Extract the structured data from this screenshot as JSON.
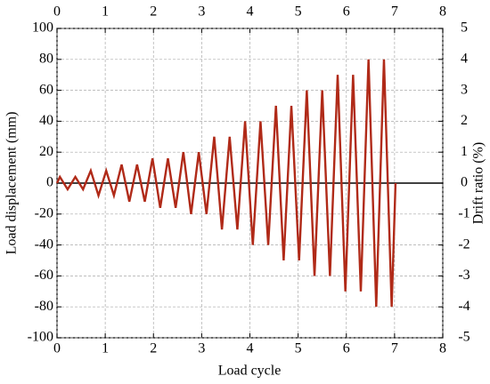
{
  "chart_data": {
    "type": "line",
    "xlabel": "Load cycle",
    "ylabel": "Load displacement (mm)",
    "y2label": "Drift ratio (%)",
    "x": [
      0,
      0.06,
      0.22,
      0.38,
      0.54,
      0.7,
      0.86,
      1.02,
      1.18,
      1.34,
      1.5,
      1.66,
      1.82,
      1.98,
      2.14,
      2.3,
      2.46,
      2.62,
      2.78,
      2.94,
      3.1,
      3.26,
      3.42,
      3.58,
      3.74,
      3.9,
      4.06,
      4.22,
      4.38,
      4.54,
      4.7,
      4.86,
      5.02,
      5.18,
      5.34,
      5.5,
      5.66,
      5.82,
      5.98,
      6.14,
      6.3,
      6.46,
      6.62,
      6.78,
      6.94,
      7.02
    ],
    "series": [
      {
        "color": "#b02a18",
        "values": [
          0,
          4,
          -4,
          4,
          -4,
          8,
          -8,
          8,
          -8,
          12,
          -12,
          12,
          -12,
          16,
          -16,
          16,
          -16,
          20,
          -20,
          20,
          -20,
          30,
          -30,
          30,
          -30,
          40,
          -40,
          40,
          -40,
          50,
          -50,
          50,
          -50,
          60,
          -60,
          60,
          -60,
          70,
          -70,
          70,
          -70,
          80,
          -80,
          80,
          -80,
          0
        ]
      }
    ],
    "xlim": [
      0,
      8
    ],
    "xticks": [
      0,
      1,
      2,
      3,
      4,
      5,
      6,
      7,
      8
    ],
    "x2ticks": [
      0,
      1,
      2,
      3,
      4,
      5,
      6,
      7,
      8
    ],
    "ylim": [
      -100,
      100
    ],
    "yticks": [
      -100,
      -80,
      -60,
      -40,
      -20,
      0,
      20,
      40,
      60,
      80,
      100
    ],
    "y2lim": [
      -5,
      5
    ],
    "y2ticks": [
      -5,
      -4,
      -3,
      -2,
      -1,
      0,
      1,
      2,
      3,
      4,
      5
    ],
    "grid": true
  }
}
